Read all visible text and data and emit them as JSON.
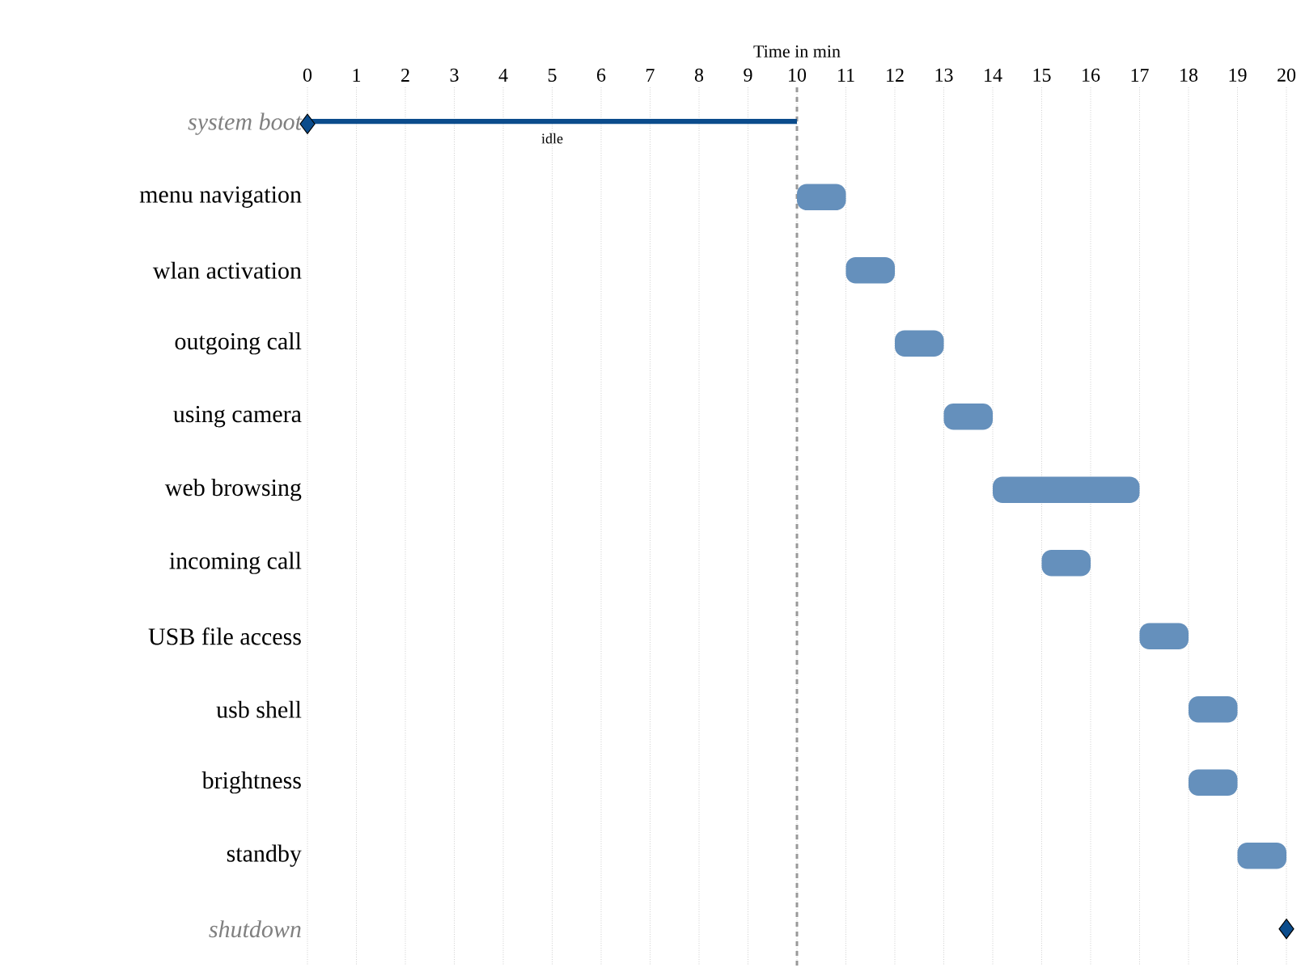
{
  "chart_data": {
    "type": "bar",
    "orientation": "horizontal",
    "xlabel": "Time in min",
    "categories": [
      "system boot",
      "menu navigation",
      "wlan activation",
      "outgoing call",
      "using camera",
      "web browsing",
      "incoming call",
      "USB file access",
      "usb shell",
      "brightness",
      "standby",
      "shutdown"
    ],
    "series": [
      {
        "color": "#0b4c8c",
        "values": [
          10,
          null,
          null,
          null,
          null,
          null,
          null,
          null,
          null,
          null,
          null,
          null
        ],
        "base": [
          0,
          null,
          null,
          null,
          null,
          null,
          null,
          null,
          null,
          null,
          null,
          null
        ]
      },
      {
        "color": "#6590bc",
        "values": [
          null,
          1,
          1,
          1,
          1,
          3,
          1,
          1,
          1,
          1,
          1,
          null
        ],
        "base": [
          null,
          10,
          11,
          12,
          13,
          14,
          15,
          17,
          18,
          18,
          19,
          null
        ]
      },
      {
        "type": "scatter",
        "marker": "diamond",
        "color": "#0b4c8c",
        "values": [
          0,
          null,
          null,
          null,
          null,
          null,
          null,
          null,
          null,
          null,
          null,
          20
        ]
      }
    ],
    "xlim": [
      0,
      20
    ],
    "xticks": [
      0,
      1,
      2,
      3,
      4,
      5,
      6,
      7,
      8,
      9,
      10,
      11,
      12,
      13,
      14,
      15,
      16,
      17,
      18,
      19,
      20
    ],
    "grid": "x",
    "ref_lines": [
      {
        "axis": "x",
        "value": 10,
        "color": "#999999",
        "line_style": "dashed"
      }
    ],
    "annotations": [
      {
        "text": "idle",
        "x": 5,
        "y": "system boot"
      }
    ]
  }
}
